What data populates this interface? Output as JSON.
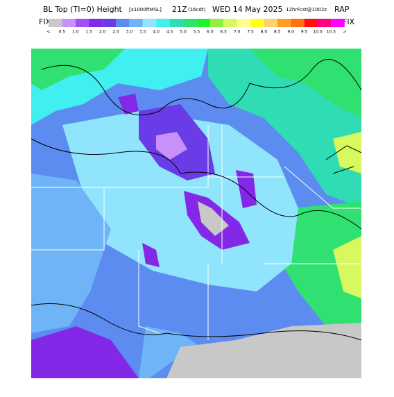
{
  "header": {
    "title_main": "BL Top (TI=0) Height",
    "title_units": "[x1000ftMSL]",
    "title_time": "21Z",
    "title_local": "(16cdt)",
    "title_date": "WED 14 May 2025",
    "title_run": "12hrFcst@1002z",
    "title_model": "RAP"
  },
  "legend": {
    "left_label": "FIX",
    "right_label": "FIX",
    "labels": [
      "<",
      "0.5",
      "1.0",
      "1.5",
      "2.0",
      "2.5",
      "3.0",
      "3.5",
      "4.0",
      "4.5",
      "5.0",
      "5.5",
      "6.0",
      "6.5",
      "7.0",
      "7.5",
      "8.0",
      "8.5",
      "9.0",
      "9.5",
      "10.0",
      "10.5",
      ">"
    ],
    "colors": [
      "#c8c8c8",
      "#c890f8",
      "#a050f0",
      "#8428e8",
      "#6a3ce8",
      "#5c8cf0",
      "#70b4f8",
      "#90e4fc",
      "#40f0f0",
      "#30dcb4",
      "#30e070",
      "#20f030",
      "#90f040",
      "#d8f860",
      "#ffff90",
      "#ffff20",
      "#ffd070",
      "#ffa020",
      "#ff7010",
      "#ff1010",
      "#ff0080",
      "#ff00ff"
    ]
  }
}
